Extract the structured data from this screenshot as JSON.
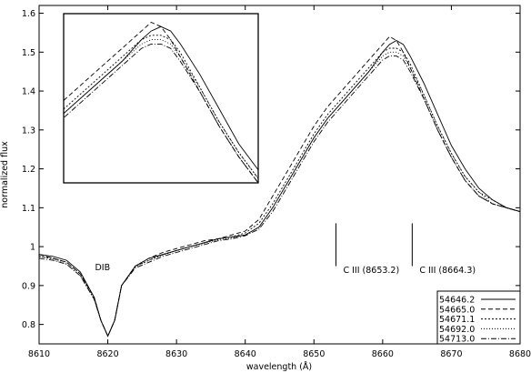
{
  "chart_data": {
    "type": "line",
    "title": "",
    "xlabel": "wavelength (Å)",
    "ylabel": "normalized flux",
    "xlim": [
      8610,
      8680
    ],
    "ylim": [
      0.75,
      1.62
    ],
    "x_ticks": [
      "8610",
      "8620",
      "8630",
      "8640",
      "8650",
      "8660",
      "8670",
      "8680"
    ],
    "y_ticks": [
      "0.8",
      "0.9",
      "1",
      "1.1",
      "1.2",
      "1.3",
      "1.4",
      "1.5",
      "1.6"
    ],
    "grid": false,
    "legend_position": "bottom-right",
    "annotations": [
      {
        "text": "DIB",
        "x": 8619.5,
        "y": 0.94
      },
      {
        "text": "C III (8653.2)",
        "x": 8653.2,
        "y": 0.97
      },
      {
        "text": "C III (8664.3)",
        "x": 8664.3,
        "y": 0.97
      }
    ],
    "series": [
      {
        "name": "54646.2",
        "dash": "solid",
        "x": [
          8610,
          8612,
          8614,
          8616,
          8618,
          8619,
          8620,
          8621,
          8622,
          8624,
          8626,
          8628,
          8630,
          8632,
          8634,
          8636,
          8638,
          8640,
          8642,
          8644,
          8646,
          8648,
          8650,
          8652,
          8654,
          8656,
          8658,
          8660,
          8661,
          8662,
          8663,
          8664,
          8666,
          8668,
          8670,
          8672,
          8674,
          8676,
          8678,
          8680
        ],
        "y": [
          0.98,
          0.975,
          0.965,
          0.935,
          0.87,
          0.81,
          0.77,
          0.81,
          0.9,
          0.95,
          0.97,
          0.98,
          0.99,
          1.0,
          1.01,
          1.02,
          1.025,
          1.03,
          1.05,
          1.1,
          1.16,
          1.22,
          1.28,
          1.33,
          1.37,
          1.41,
          1.45,
          1.5,
          1.52,
          1.53,
          1.52,
          1.49,
          1.42,
          1.34,
          1.26,
          1.2,
          1.15,
          1.12,
          1.1,
          1.09
        ]
      },
      {
        "name": "54665.0",
        "dash": "dashed",
        "x": [
          8610,
          8612,
          8614,
          8616,
          8618,
          8619,
          8620,
          8621,
          8622,
          8624,
          8626,
          8628,
          8630,
          8632,
          8634,
          8636,
          8638,
          8640,
          8642,
          8644,
          8646,
          8648,
          8650,
          8652,
          8654,
          8656,
          8658,
          8660,
          8661,
          8662,
          8663,
          8664,
          8666,
          8668,
          8670,
          8672,
          8674,
          8676,
          8678,
          8680
        ],
        "y": [
          0.98,
          0.97,
          0.96,
          0.93,
          0.87,
          0.81,
          0.77,
          0.81,
          0.9,
          0.95,
          0.97,
          0.985,
          0.995,
          1.005,
          1.015,
          1.02,
          1.03,
          1.04,
          1.07,
          1.13,
          1.19,
          1.25,
          1.31,
          1.36,
          1.4,
          1.44,
          1.48,
          1.52,
          1.54,
          1.53,
          1.5,
          1.46,
          1.38,
          1.3,
          1.23,
          1.17,
          1.13,
          1.11,
          1.1,
          1.09
        ]
      },
      {
        "name": "54671.1",
        "dash": "dotted-dense",
        "x": [
          8610,
          8612,
          8614,
          8616,
          8618,
          8619,
          8620,
          8621,
          8622,
          8624,
          8626,
          8628,
          8630,
          8632,
          8634,
          8636,
          8638,
          8640,
          8642,
          8644,
          8646,
          8648,
          8650,
          8652,
          8654,
          8656,
          8658,
          8660,
          8661,
          8662,
          8663,
          8664,
          8666,
          8668,
          8670,
          8672,
          8674,
          8676,
          8678,
          8680
        ],
        "y": [
          0.975,
          0.97,
          0.96,
          0.93,
          0.87,
          0.81,
          0.77,
          0.81,
          0.9,
          0.95,
          0.965,
          0.98,
          0.99,
          1.0,
          1.01,
          1.02,
          1.025,
          1.035,
          1.06,
          1.11,
          1.17,
          1.23,
          1.29,
          1.34,
          1.38,
          1.42,
          1.46,
          1.5,
          1.51,
          1.51,
          1.5,
          1.47,
          1.39,
          1.31,
          1.24,
          1.18,
          1.14,
          1.12,
          1.1,
          1.09
        ]
      },
      {
        "name": "54692.0",
        "dash": "dotted",
        "x": [
          8610,
          8612,
          8614,
          8616,
          8618,
          8619,
          8620,
          8621,
          8622,
          8624,
          8626,
          8628,
          8630,
          8632,
          8634,
          8636,
          8638,
          8640,
          8642,
          8644,
          8646,
          8648,
          8650,
          8652,
          8654,
          8656,
          8658,
          8660,
          8661,
          8662,
          8663,
          8664,
          8666,
          8668,
          8670,
          8672,
          8674,
          8676,
          8678,
          8680
        ],
        "y": [
          0.975,
          0.968,
          0.955,
          0.925,
          0.865,
          0.81,
          0.77,
          0.81,
          0.9,
          0.948,
          0.965,
          0.978,
          0.99,
          1.0,
          1.008,
          1.018,
          1.022,
          1.03,
          1.05,
          1.1,
          1.16,
          1.22,
          1.28,
          1.33,
          1.37,
          1.41,
          1.45,
          1.49,
          1.5,
          1.5,
          1.49,
          1.46,
          1.39,
          1.31,
          1.24,
          1.18,
          1.14,
          1.11,
          1.1,
          1.09
        ]
      },
      {
        "name": "54713.0",
        "dash": "dashdot",
        "x": [
          8610,
          8612,
          8614,
          8616,
          8618,
          8619,
          8620,
          8621,
          8622,
          8624,
          8626,
          8628,
          8630,
          8632,
          8634,
          8636,
          8638,
          8640,
          8642,
          8644,
          8646,
          8648,
          8650,
          8652,
          8654,
          8656,
          8658,
          8660,
          8661,
          8662,
          8663,
          8664,
          8666,
          8668,
          8670,
          8672,
          8674,
          8676,
          8678,
          8680
        ],
        "y": [
          0.97,
          0.965,
          0.955,
          0.925,
          0.865,
          0.81,
          0.77,
          0.81,
          0.9,
          0.945,
          0.96,
          0.975,
          0.985,
          0.995,
          1.005,
          1.015,
          1.02,
          1.028,
          1.045,
          1.09,
          1.15,
          1.21,
          1.27,
          1.32,
          1.36,
          1.4,
          1.44,
          1.48,
          1.49,
          1.49,
          1.48,
          1.45,
          1.38,
          1.3,
          1.23,
          1.17,
          1.13,
          1.11,
          1.1,
          1.09
        ]
      }
    ]
  }
}
